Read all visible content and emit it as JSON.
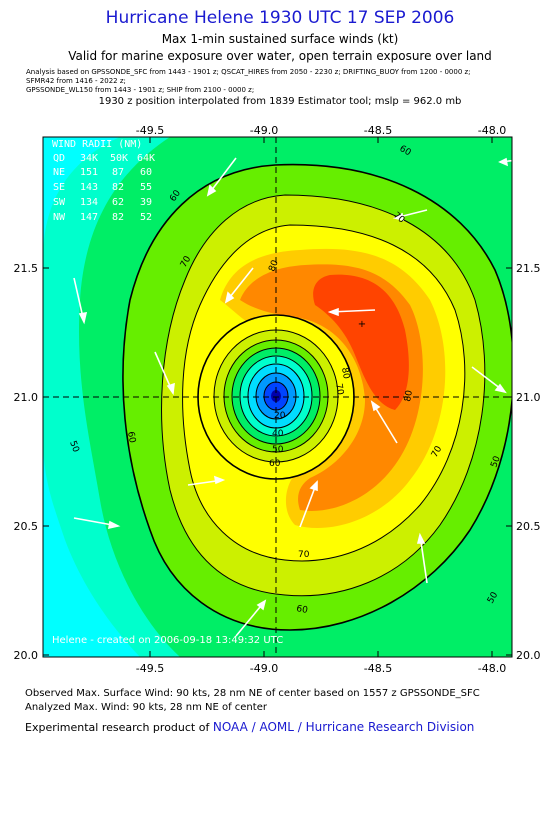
{
  "title": "Hurricane Helene 1930 UTC 17 SEP 2006",
  "subtitle1": "Max 1-min sustained surface winds (kt)",
  "subtitle2": "Valid for marine exposure over water, open terrain exposure over land",
  "analysis": [
    "Analysis based on  GPSSONDE_SFC from 1443 - 1901 z;  QSCAT_HIRES from 2050 - 2230 z;  DRIFTING_BUOY from 1200 - 0000 z;",
    "SFMR42 from 1416 - 2022 z;",
    "GPSSONDE_WL150 from 1443 - 1901 z;  SHIP from 2100 - 0000 z;"
  ],
  "interp_note": "1930 z position interpolated from 1839 Estimator tool; mslp = 962.0 mb",
  "x_ticks": [
    "-49.5",
    "-49.0",
    "-48.5",
    "-48.0"
  ],
  "y_ticks": [
    "21.5",
    "21.0",
    "20.5",
    "20.0"
  ],
  "wind_radii": {
    "title": "WIND RADII (NM)",
    "header": [
      "QD",
      "34K",
      "50K",
      "64K"
    ],
    "rows": [
      [
        "NE",
        "151",
        "87",
        "60"
      ],
      [
        "SE",
        "143",
        "82",
        "55"
      ],
      [
        "SW",
        "134",
        "62",
        "39"
      ],
      [
        "NW",
        "147",
        "82",
        "52"
      ]
    ]
  },
  "contour_labels": [
    "80",
    "70",
    "70",
    "70",
    "60",
    "60",
    "60",
    "60",
    "50",
    "50",
    "50",
    "80",
    "70",
    "80",
    "70",
    "60",
    "50",
    "40",
    "20"
  ],
  "created_note": "Helene  - created  on  2006-09-18  13:49:32  UTC",
  "footer": {
    "observed": "Observed Max. Surface Wind: 90 kts, 28 nm NE of center based on 1557 z GPSSONDE_SFC",
    "analyzed": "Analyzed Max. Wind: 90 kts, 28 nm NE of center",
    "product_prefix": "Experimental research product of ",
    "product_org": "NOAA / AOML / Hurricane Research Division"
  }
}
